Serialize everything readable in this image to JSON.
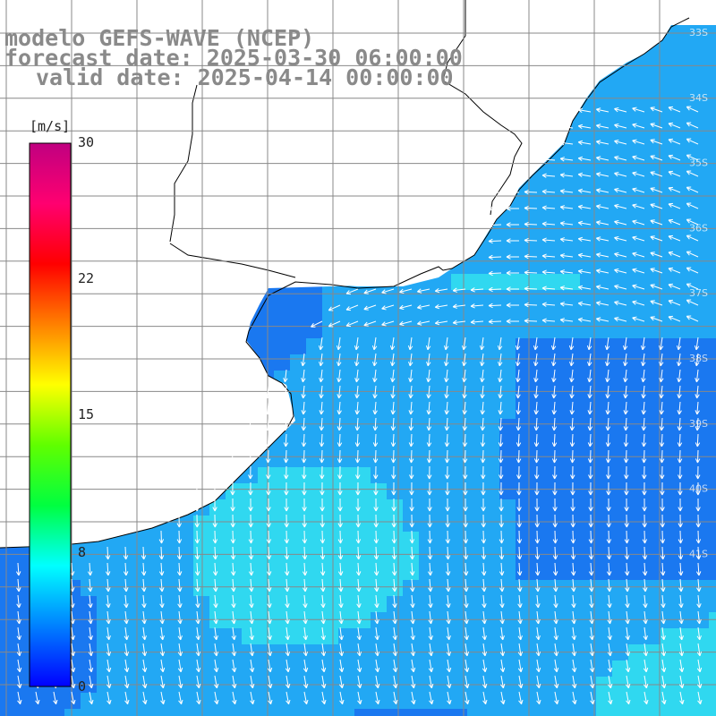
{
  "title": {
    "line1": "modelo GEFS-WAVE (NCEP)",
    "line2": "forecast date: 2025-03-30 06:00:00",
    "line3": "valid date: 2025-04-14 00:00:00"
  },
  "colorbar": {
    "unit": "[m/s]",
    "ticks": [
      "30",
      "22",
      "15",
      "8",
      "0"
    ],
    "min": 0,
    "max": 30,
    "colors": [
      "#0000ff",
      "#0080ff",
      "#00ffff",
      "#00ff40",
      "#60ff00",
      "#ffff00",
      "#ff8000",
      "#ff0000",
      "#ff0070",
      "#c00080"
    ]
  },
  "map": {
    "grid_lines": true,
    "lat_labels": [
      "33S",
      "34S",
      "35S",
      "36S",
      "37S",
      "38S",
      "39S",
      "40S",
      "41S"
    ],
    "land_color": "#ffffff",
    "ocean_colors": {
      "low": "#1a78f0",
      "mid": "#22a8f4",
      "high": "#30d8f0"
    }
  }
}
